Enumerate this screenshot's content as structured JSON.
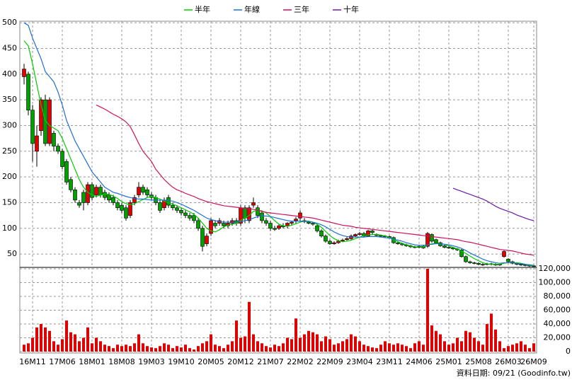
{
  "chart_data": {
    "type": "candlestick",
    "legend": "top",
    "grid": true,
    "up_color": "#e00000",
    "down_color": "#00a000",
    "categories": [
      null,
      null,
      "16M11",
      null,
      null,
      null,
      null,
      null,
      null,
      "17M06",
      null,
      null,
      null,
      null,
      null,
      null,
      "18M01",
      null,
      null,
      null,
      null,
      null,
      null,
      "18M08",
      null,
      null,
      null,
      null,
      null,
      null,
      "19M03",
      null,
      null,
      null,
      null,
      null,
      null,
      "19M10",
      null,
      null,
      null,
      null,
      null,
      null,
      "20M05",
      null,
      null,
      null,
      null,
      null,
      null,
      "20M12",
      null,
      null,
      null,
      null,
      null,
      null,
      "21M07",
      null,
      null,
      null,
      null,
      null,
      null,
      "22M02",
      null,
      null,
      null,
      null,
      null,
      null,
      "22M09",
      null,
      null,
      null,
      null,
      null,
      null,
      "23M04",
      null,
      null,
      null,
      null,
      null,
      null,
      "23M11",
      null,
      null,
      null,
      null,
      null,
      null,
      "24M06",
      null,
      null,
      null,
      null,
      null,
      null,
      "25M01",
      null,
      null,
      null,
      null,
      null,
      null,
      "25M08",
      null,
      null,
      null,
      null,
      null,
      null,
      "26M03",
      null,
      null,
      null,
      null,
      null,
      "26M09"
    ],
    "open": [
      395,
      400,
      330,
      250,
      290,
      350,
      265,
      285,
      260,
      250,
      230,
      195,
      175,
      150,
      170,
      150,
      185,
      165,
      180,
      170,
      165,
      160,
      150,
      145,
      140,
      125,
      150,
      165,
      180,
      175,
      165,
      160,
      150,
      140,
      160,
      145,
      140,
      135,
      130,
      125,
      125,
      115,
      100,
      70,
      90,
      110,
      110,
      110,
      105,
      110,
      115,
      110,
      140,
      115,
      145,
      140,
      130,
      115,
      110,
      100,
      100,
      105,
      105,
      110,
      115,
      120,
      115,
      112,
      110,
      105,
      95,
      85,
      75,
      70,
      72,
      75,
      78,
      80,
      85,
      88,
      90,
      85,
      95,
      88,
      86,
      85,
      84,
      82,
      72,
      70,
      68,
      66,
      64,
      63,
      65,
      65,
      88,
      78,
      72,
      66,
      63,
      62,
      60,
      58,
      45,
      35,
      33,
      32,
      30,
      30,
      31,
      30,
      29,
      45,
      40,
      35,
      32,
      30,
      29,
      28,
      27
    ],
    "high": [
      420,
      405,
      340,
      300,
      355,
      360,
      355,
      290,
      265,
      255,
      235,
      200,
      180,
      155,
      175,
      190,
      190,
      185,
      185,
      175,
      170,
      165,
      155,
      150,
      145,
      155,
      165,
      190,
      185,
      180,
      170,
      165,
      155,
      160,
      165,
      150,
      145,
      140,
      135,
      130,
      130,
      120,
      105,
      90,
      120,
      115,
      120,
      115,
      115,
      120,
      120,
      145,
      145,
      145,
      160,
      145,
      135,
      120,
      115,
      105,
      108,
      110,
      112,
      115,
      122,
      135,
      120,
      115,
      112,
      108,
      98,
      88,
      78,
      75,
      78,
      80,
      83,
      88,
      90,
      93,
      93,
      97,
      97,
      90,
      88,
      87,
      86,
      84,
      75,
      72,
      70,
      68,
      66,
      67,
      68,
      93,
      90,
      80,
      74,
      68,
      65,
      64,
      62,
      60,
      47,
      37,
      35,
      34,
      32,
      33,
      33,
      32,
      31,
      57,
      42,
      37,
      34,
      32,
      31,
      30,
      29
    ],
    "low": [
      380,
      320,
      230,
      220,
      280,
      260,
      260,
      250,
      245,
      215,
      185,
      170,
      150,
      140,
      135,
      145,
      155,
      160,
      160,
      155,
      150,
      145,
      135,
      130,
      115,
      120,
      145,
      160,
      165,
      160,
      155,
      145,
      130,
      135,
      140,
      135,
      130,
      125,
      120,
      115,
      110,
      95,
      55,
      65,
      85,
      100,
      105,
      100,
      100,
      105,
      105,
      105,
      110,
      110,
      140,
      120,
      110,
      105,
      95,
      95,
      97,
      100,
      100,
      105,
      110,
      115,
      110,
      108,
      105,
      92,
      82,
      72,
      68,
      68,
      70,
      73,
      76,
      78,
      83,
      86,
      82,
      83,
      87,
      84,
      83,
      82,
      80,
      70,
      68,
      66,
      64,
      62,
      61,
      61,
      60,
      62,
      72,
      70,
      64,
      61,
      60,
      58,
      56,
      43,
      33,
      31,
      30,
      28,
      27,
      28,
      28,
      27,
      27,
      43,
      33,
      30,
      28,
      27,
      26,
      25,
      24
    ],
    "close": [
      410,
      330,
      265,
      280,
      350,
      265,
      350,
      260,
      250,
      220,
      190,
      175,
      155,
      145,
      150,
      185,
      160,
      180,
      165,
      160,
      155,
      150,
      140,
      135,
      120,
      150,
      160,
      180,
      170,
      165,
      160,
      150,
      135,
      155,
      145,
      140,
      135,
      130,
      125,
      120,
      115,
      100,
      65,
      85,
      115,
      105,
      115,
      105,
      110,
      115,
      110,
      140,
      120,
      140,
      150,
      125,
      115,
      110,
      100,
      98,
      105,
      103,
      110,
      112,
      118,
      130,
      113,
      110,
      108,
      95,
      85,
      75,
      70,
      72,
      75,
      77,
      80,
      85,
      88,
      90,
      85,
      95,
      92,
      86,
      85,
      84,
      82,
      72,
      70,
      68,
      66,
      64,
      63,
      65,
      62,
      90,
      75,
      72,
      66,
      63,
      62,
      60,
      58,
      45,
      35,
      33,
      32,
      30,
      29,
      31,
      30,
      29,
      30,
      55,
      35,
      32,
      30,
      29,
      28,
      27,
      26
    ],
    "ylim": [
      24,
      503
    ],
    "yticks": [
      50,
      100,
      150,
      200,
      250,
      300,
      350,
      400,
      450,
      500
    ],
    "series": [
      {
        "name": "半年",
        "color": "#00cc00",
        "values": [
          465,
          455,
          420,
          380,
          340,
          310,
          300,
          295,
          290,
          275,
          255,
          235,
          215,
          195,
          180,
          170,
          165,
          162,
          165,
          167,
          166,
          163,
          158,
          152,
          148,
          146,
          148,
          152,
          156,
          160,
          162,
          160,
          157,
          153,
          150,
          147,
          144,
          140,
          136,
          132,
          127,
          120,
          110,
          100,
          95,
          93,
          97,
          103,
          106,
          108,
          110,
          115,
          120,
          125,
          133,
          135,
          134,
          130,
          123,
          115,
          108,
          105,
          104,
          106,
          109,
          112,
          114,
          114,
          112,
          108,
          102,
          94,
          86,
          80,
          76,
          74,
          75,
          77,
          80,
          83,
          86,
          87,
          88,
          88,
          87,
          85,
          82,
          78,
          74,
          71,
          68,
          66,
          64,
          64,
          64,
          68,
          70,
          71,
          70,
          69,
          66,
          63,
          60,
          56,
          51,
          46,
          41,
          37,
          33,
          31,
          30,
          30,
          30,
          32,
          33,
          33,
          33,
          32,
          30,
          28,
          27
        ]
      },
      {
        "name": "年線",
        "color": "#1f6fd0",
        "values": [
          500,
          495,
          470,
          450,
          430,
          405,
          395,
          385,
          365,
          340,
          310,
          290,
          270,
          255,
          240,
          225,
          210,
          200,
          190,
          180,
          175,
          170,
          168,
          165,
          162,
          160,
          158,
          157,
          157,
          156,
          155,
          155,
          155,
          155,
          154,
          153,
          150,
          147,
          143,
          139,
          135,
          130,
          125,
          120,
          117,
          115,
          113,
          112,
          112,
          112,
          112,
          113,
          115,
          117,
          120,
          123,
          124,
          124,
          123,
          121,
          119,
          117,
          115,
          114,
          114,
          114,
          114,
          113,
          112,
          110,
          107,
          103,
          98,
          93,
          89,
          86,
          84,
          83,
          83,
          83,
          83,
          84,
          84,
          84,
          83,
          82,
          81,
          79,
          77,
          75,
          72,
          70,
          68,
          67,
          67,
          68,
          69,
          70,
          70,
          69,
          68,
          66,
          64,
          61,
          57,
          52,
          48,
          44,
          40,
          37,
          35,
          33,
          32,
          33,
          33,
          33,
          32,
          31,
          30,
          29,
          28
        ]
      },
      {
        "name": "三年",
        "color": "#d0105a",
        "values": [
          null,
          null,
          null,
          null,
          null,
          null,
          null,
          null,
          null,
          null,
          null,
          null,
          null,
          null,
          null,
          null,
          null,
          340,
          336,
          332,
          327,
          322,
          318,
          313,
          307,
          298,
          282,
          265,
          250,
          240,
          230,
          215,
          205,
          195,
          187,
          180,
          175,
          172,
          168,
          165,
          162,
          158,
          155,
          152,
          150,
          148,
          146,
          144,
          143,
          142,
          141,
          140,
          139,
          138,
          137,
          135,
          133,
          131,
          130,
          129,
          128,
          127,
          126,
          125,
          124,
          123,
          122,
          121,
          120,
          118,
          116,
          114,
          112,
          110,
          108,
          106,
          105,
          104,
          102,
          101,
          100,
          99,
          98,
          97,
          96,
          95,
          94,
          93,
          92,
          91,
          90,
          89,
          88,
          87,
          86,
          85,
          84,
          83,
          82,
          81,
          80,
          79,
          78,
          76,
          74,
          73,
          71,
          69,
          67,
          65,
          63,
          61,
          59,
          58,
          57,
          56,
          54,
          52,
          50,
          49,
          48
        ]
      },
      {
        "name": "十年",
        "color": "#6a1aa8",
        "values": [
          null,
          null,
          null,
          null,
          null,
          null,
          null,
          null,
          null,
          null,
          null,
          null,
          null,
          null,
          null,
          null,
          null,
          null,
          null,
          null,
          null,
          null,
          null,
          null,
          null,
          null,
          null,
          null,
          null,
          null,
          null,
          null,
          null,
          null,
          null,
          null,
          null,
          null,
          null,
          null,
          null,
          null,
          null,
          null,
          null,
          null,
          null,
          null,
          null,
          null,
          null,
          null,
          null,
          null,
          null,
          null,
          null,
          null,
          null,
          null,
          null,
          null,
          null,
          null,
          null,
          null,
          null,
          null,
          null,
          null,
          null,
          null,
          null,
          null,
          null,
          null,
          null,
          null,
          null,
          null,
          null,
          null,
          null,
          null,
          null,
          null,
          null,
          null,
          null,
          null,
          null,
          null,
          null,
          null,
          null,
          null,
          null,
          null,
          null,
          null,
          null,
          178,
          175,
          172,
          169,
          166,
          163,
          160,
          157,
          153,
          148,
          143,
          139,
          136,
          133,
          130,
          126,
          123,
          120,
          117,
          115
        ]
      }
    ],
    "volume": {
      "color": "#e00000",
      "values": [
        10000,
        12000,
        20000,
        35000,
        40000,
        35000,
        30000,
        15000,
        10000,
        18000,
        45000,
        28000,
        25000,
        15000,
        20000,
        35000,
        12000,
        20000,
        15000,
        10000,
        8000,
        5000,
        10000,
        8000,
        10000,
        8000,
        12000,
        25000,
        12000,
        8000,
        6000,
        5000,
        8000,
        12000,
        10000,
        5000,
        8000,
        6000,
        10000,
        5000,
        3000,
        8000,
        12000,
        15000,
        25000,
        10000,
        8000,
        5000,
        10000,
        15000,
        45000,
        20000,
        22000,
        72000,
        25000,
        15000,
        12000,
        8000,
        6000,
        10000,
        8000,
        12000,
        20000,
        18000,
        48000,
        20000,
        25000,
        30000,
        28000,
        25000,
        15000,
        22000,
        18000,
        10000,
        12000,
        15000,
        18000,
        25000,
        22000,
        15000,
        10000,
        8000,
        6000,
        5000,
        10000,
        15000,
        12000,
        10000,
        12000,
        10000,
        8000,
        5000,
        12000,
        15000,
        10000,
        120000,
        38000,
        30000,
        25000,
        15000,
        10000,
        12000,
        20000,
        15000,
        30000,
        28000,
        20000,
        15000,
        10000,
        40000,
        55000,
        32000,
        15000,
        5000,
        8000,
        10000,
        12000,
        15000,
        10000,
        5000,
        12000
      ],
      "ylim": [
        0,
        122000
      ],
      "yticks": [
        {
          "value": 0,
          "label": "0"
        },
        {
          "value": 20000,
          "label": "20,000"
        },
        {
          "value": 40000,
          "label": "40,000"
        },
        {
          "value": 60000,
          "label": "60,000"
        },
        {
          "value": 80000,
          "label": "80,000"
        },
        {
          "value": 100000,
          "label": "100,000"
        },
        {
          "value": 120000,
          "label": "120,000"
        }
      ]
    },
    "source": "資料日期: 09/21 (Goodinfo.tw)"
  }
}
